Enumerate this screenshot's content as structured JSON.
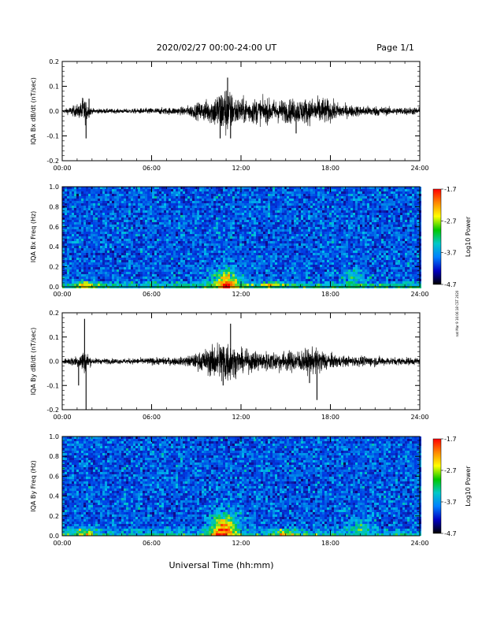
{
  "header": {
    "title": "2020/02/27  00:00-24:00 UT",
    "page": "Page 1/1"
  },
  "footer": {
    "xlabel": "Universal Time (hh:mm)"
  },
  "side_note": "nat Mar 9 16:06:18 CST 2020",
  "time_ticks": [
    "00:00",
    "06:00",
    "12:00",
    "18:00",
    "24:00"
  ],
  "colorbar": {
    "label": "Log10 Power",
    "ticks": [
      "-1.7",
      "-2.7",
      "-3.7",
      "-4.7"
    ],
    "colors": [
      "#ff0000",
      "#ff8800",
      "#ffff00",
      "#00c800",
      "#00c8c8",
      "#0080ff",
      "#0000c0",
      "#000000"
    ]
  },
  "chart_data": [
    {
      "type": "line",
      "ylabel": "IQA Bx dB/dt (nT/sec)",
      "xlim": [
        0,
        24
      ],
      "ylim": [
        -0.2,
        0.2
      ],
      "yticks": [
        "0.2",
        "0.1",
        "0.0",
        "-0.1",
        "-0.2"
      ],
      "series": [
        {
          "x_hours": [
            0,
            1.2,
            1.4,
            1.6,
            2,
            4,
            6,
            8,
            9,
            10,
            10.5,
            11,
            11.5,
            12,
            13,
            14,
            15,
            16,
            17,
            17.5,
            18,
            19,
            20,
            21,
            22,
            23,
            24
          ],
          "amplitude": [
            0.005,
            0.03,
            0.06,
            0.04,
            0.01,
            0.008,
            0.012,
            0.015,
            0.03,
            0.05,
            0.08,
            0.1,
            0.06,
            0.05,
            0.05,
            0.045,
            0.045,
            0.05,
            0.05,
            0.055,
            0.04,
            0.025,
            0.02,
            0.02,
            0.015,
            0.015,
            0.015
          ],
          "peaks": [
            [
              1.6,
              -0.11
            ],
            [
              1.8,
              0.05
            ],
            [
              11.1,
              0.135
            ],
            [
              11.3,
              -0.11
            ],
            [
              10.6,
              -0.11
            ],
            [
              15.7,
              -0.09
            ]
          ]
        }
      ]
    },
    {
      "type": "heatmap",
      "ylabel": "IQA Bx Freq (Hz)",
      "xlim": [
        0,
        24
      ],
      "ylim": [
        0.0,
        1.0
      ],
      "yticks": [
        "1.0",
        "0.8",
        "0.6",
        "0.4",
        "0.2",
        "0.0"
      ],
      "zlim": [
        -4.7,
        -1.7
      ],
      "hotspots": [
        [
          11,
          0.05,
          0.12,
          -2.2
        ],
        [
          1.6,
          0.02,
          0.04,
          -3.0
        ],
        [
          14,
          0.02,
          0.03,
          -2.9
        ],
        [
          19.5,
          0.1,
          0.08,
          -3.1
        ]
      ]
    },
    {
      "type": "line",
      "ylabel": "IQA By dB/dt (nT/sec)",
      "xlim": [
        0,
        24
      ],
      "ylim": [
        -0.2,
        0.2
      ],
      "yticks": [
        "0.2",
        "0.1",
        "0.0",
        "-0.1",
        "-0.2"
      ],
      "series": [
        {
          "x_hours": [
            0,
            1.2,
            1.4,
            1.6,
            2,
            4,
            6,
            8,
            9,
            10,
            10.5,
            11,
            11.5,
            12,
            13,
            14,
            15,
            16,
            17,
            17.5,
            18,
            19,
            20,
            21,
            22,
            23,
            24
          ],
          "amplitude": [
            0.006,
            0.03,
            0.05,
            0.04,
            0.012,
            0.01,
            0.014,
            0.016,
            0.03,
            0.06,
            0.08,
            0.1,
            0.06,
            0.045,
            0.04,
            0.04,
            0.04,
            0.045,
            0.05,
            0.045,
            0.03,
            0.02,
            0.02,
            0.02,
            0.015,
            0.015,
            0.015
          ],
          "peaks": [
            [
              1.5,
              0.175
            ],
            [
              1.6,
              -0.2
            ],
            [
              1.1,
              -0.1
            ],
            [
              11.3,
              0.155
            ],
            [
              10.8,
              -0.1
            ],
            [
              17.1,
              -0.16
            ],
            [
              16.6,
              -0.09
            ]
          ]
        }
      ]
    },
    {
      "type": "heatmap",
      "ylabel": "IQA By Freq (Hz)",
      "xlim": [
        0,
        24
      ],
      "ylim": [
        0.0,
        1.0
      ],
      "yticks": [
        "1.0",
        "0.8",
        "0.6",
        "0.4",
        "0.2",
        "0.0"
      ],
      "zlim": [
        -4.7,
        -1.7
      ],
      "hotspots": [
        [
          10.8,
          0.07,
          0.15,
          -2.1
        ],
        [
          1.4,
          0.03,
          0.05,
          -2.9
        ],
        [
          15,
          0.02,
          0.04,
          -2.8
        ],
        [
          20,
          0.1,
          0.07,
          -3.0
        ]
      ]
    }
  ]
}
